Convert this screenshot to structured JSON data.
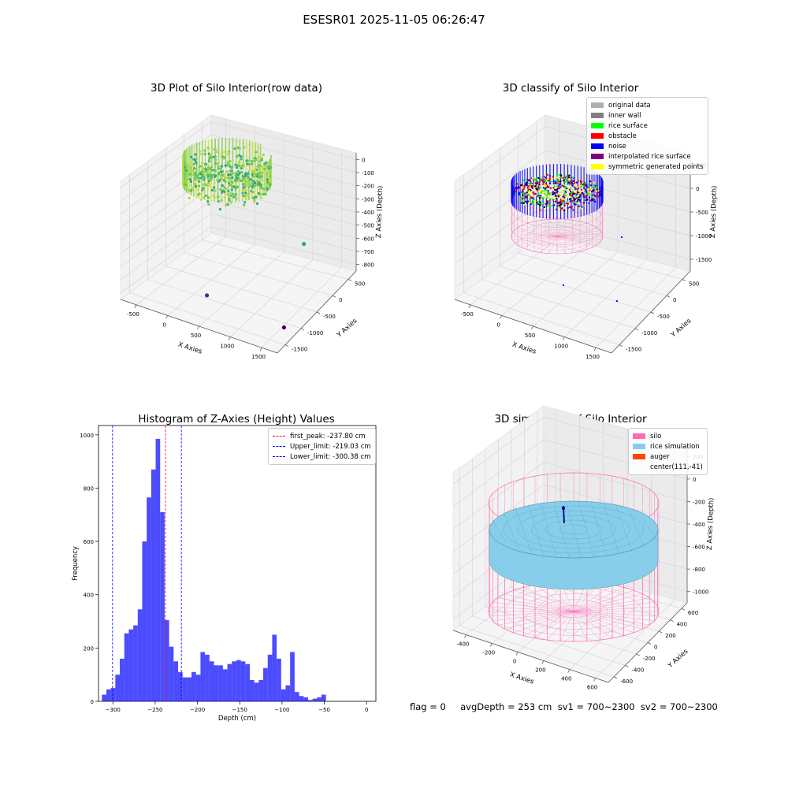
{
  "figure_title": "ESESR01 2025-11-05 06:26:47",
  "status_line": "flag = 0     avgDepth = 253 cm  sv1 = 700~2300  sv2 = 700~2300",
  "chart_data": [
    {
      "id": "raw",
      "type": "scatter3d",
      "title": "3D Plot of Silo Interior(row data)",
      "xlabel": "X Axies",
      "ylabel": "Y Axies",
      "zlabel": "Z Axies (Depth)",
      "x_ticks": [
        "-500",
        "0",
        "500",
        "1000",
        "1500"
      ],
      "y_ticks": [
        "-1500",
        "-1000",
        "-500",
        "0",
        "500"
      ],
      "z_ticks": [
        "0",
        "-100",
        "-200",
        "-300",
        "-400",
        "-500",
        "-600",
        "-700",
        "-800"
      ],
      "xlim": [
        -600,
        1800
      ],
      "ylim": [
        -1600,
        700
      ],
      "zlim": [
        -850,
        30
      ],
      "colormap": "viridis",
      "outliers": [
        {
          "x": 1000,
          "y": 400,
          "z": -600,
          "color": "#3a9c8c"
        },
        {
          "x": 300,
          "y": -900,
          "z": -820,
          "color": "#472d7b"
        },
        {
          "x": 1600,
          "y": -1100,
          "z": -800,
          "color": "#440154"
        }
      ]
    },
    {
      "id": "classify",
      "type": "scatter3d",
      "title": "3D classify of Silo Interior",
      "xlabel": "X Axies",
      "ylabel": "Y Axies",
      "zlabel": "Z Axies (Depth)",
      "x_ticks": [
        "-500",
        "0",
        "500",
        "1000",
        "1500"
      ],
      "y_ticks": [
        "-1500",
        "-1000",
        "-500",
        "0",
        "500"
      ],
      "z_ticks": [
        "500",
        "0",
        "-500",
        "-1000",
        "-1500"
      ],
      "legend": [
        {
          "label": "original data",
          "color": "#b0b0b0"
        },
        {
          "label": "inner wall",
          "color": "#808080"
        },
        {
          "label": "rice surface",
          "color": "#00ff00"
        },
        {
          "label": "obstacle",
          "color": "#ff0000"
        },
        {
          "label": "noise",
          "color": "#0000ff"
        },
        {
          "label": "interpolated rice surface",
          "color": "#800080"
        },
        {
          "label": "symmetric generated points",
          "color": "#ffff00"
        }
      ]
    },
    {
      "id": "hist",
      "type": "bar",
      "title": "Histogram of Z-Axies (Height) Values",
      "xlabel": "Depth (cm)",
      "ylabel": "Frequency",
      "xlim": [
        -317,
        11
      ],
      "ylim": [
        0,
        1035
      ],
      "x_ticks": [
        -300,
        -250,
        -200,
        -150,
        -100,
        -50,
        0
      ],
      "y_ticks": [
        0,
        200,
        400,
        600,
        800,
        1000
      ],
      "bar_color": "#0000ff",
      "bin_start": -313,
      "bin_width": 5.3,
      "values": [
        25,
        45,
        50,
        100,
        160,
        255,
        270,
        285,
        345,
        600,
        765,
        870,
        985,
        710,
        305,
        205,
        150,
        110,
        90,
        90,
        110,
        100,
        185,
        175,
        150,
        135,
        135,
        120,
        140,
        150,
        155,
        150,
        140,
        80,
        70,
        80,
        125,
        175,
        250,
        160,
        45,
        60,
        185,
        35,
        20,
        15,
        5,
        10,
        15,
        25
      ],
      "lines": [
        {
          "label": "first_peak: -237.80 cm",
          "x": -237.8,
          "color": "#ff0000"
        },
        {
          "label": "Upper_limit: -219.03 cm",
          "x": -219.03,
          "color": "#0000ff"
        },
        {
          "label": "Lower_limit: -300.38 cm",
          "x": -300.38,
          "color": "#0000ff"
        }
      ]
    },
    {
      "id": "sim",
      "type": "surface3d",
      "title": "3D simulation of Silo Interior",
      "xlabel": "X Axies",
      "ylabel": "Y Axies",
      "zlabel": "Z Axies (Depth)",
      "x_ticks": [
        "-400",
        "-200",
        "0",
        "200",
        "400",
        "600"
      ],
      "y_ticks": [
        "-600",
        "-400",
        "-200",
        "0",
        "200",
        "400",
        "600"
      ],
      "z_ticks": [
        "200",
        "0",
        "-200",
        "-400",
        "-600",
        "-800",
        "-1000"
      ],
      "legend": [
        {
          "label": "silo",
          "color": "#ff69b4"
        },
        {
          "label": "rice simulation",
          "color": "#87ceeb"
        },
        {
          "label": "auger",
          "color": "#ff4500"
        },
        {
          "label": "center(111,-41)",
          "color": ""
        }
      ]
    }
  ]
}
